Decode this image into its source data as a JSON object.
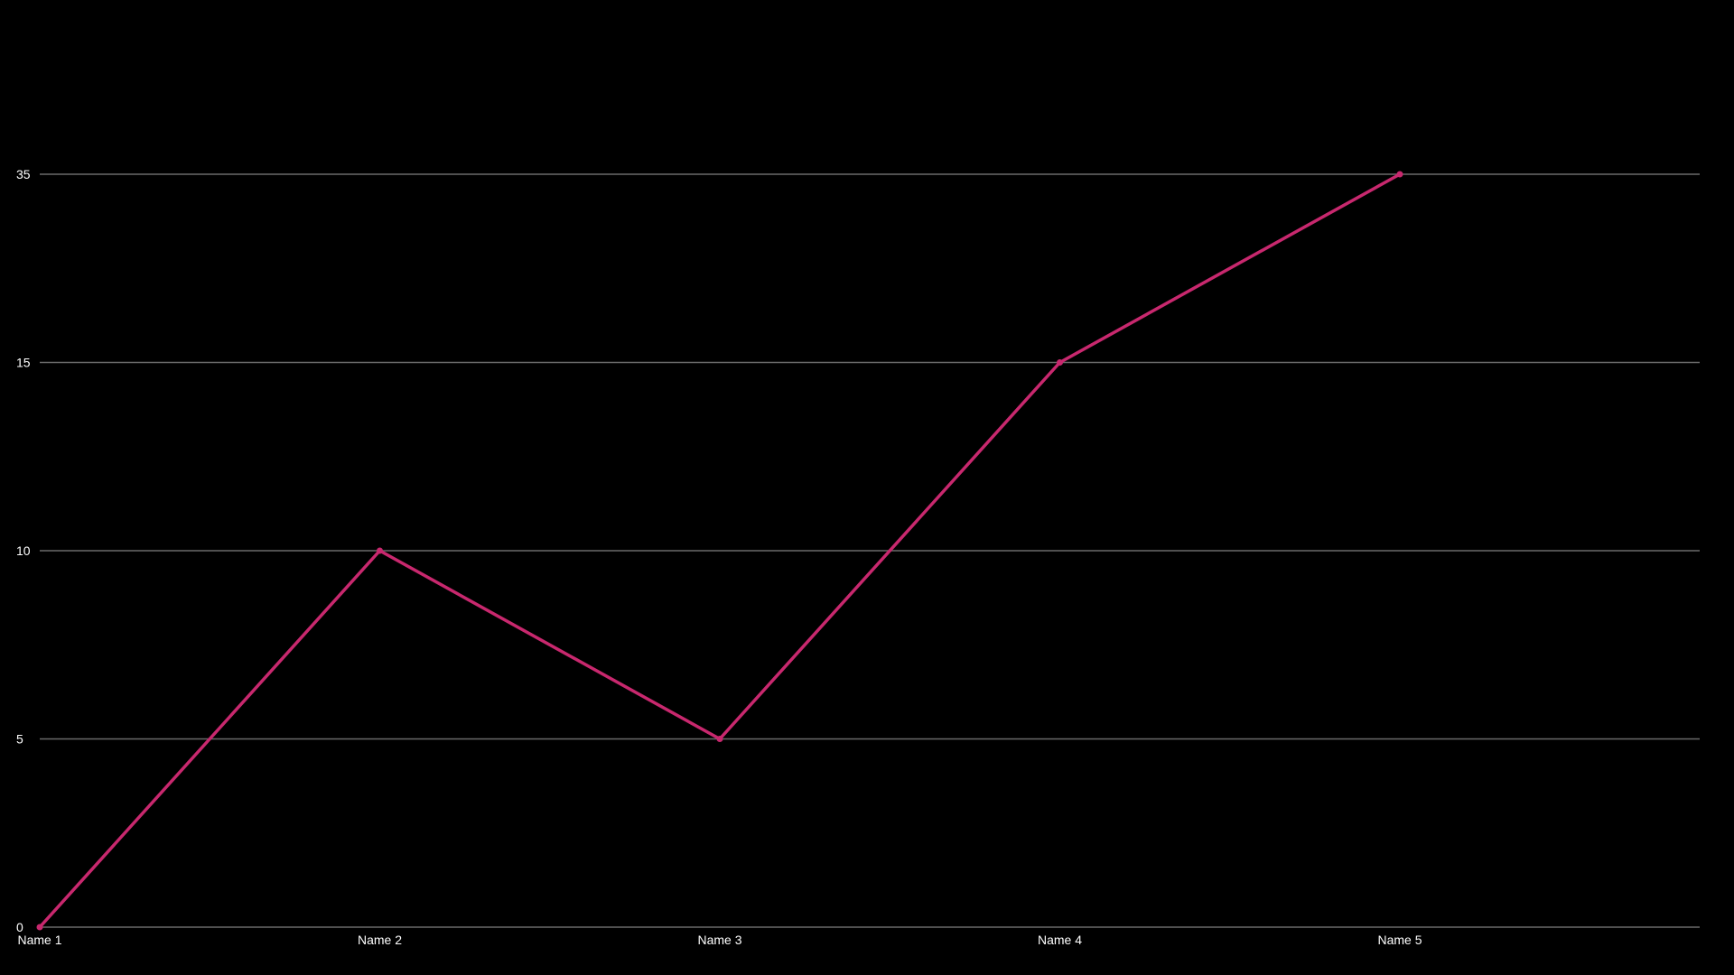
{
  "colors": {
    "background": "#000000",
    "gridline": "#6b6b6b",
    "series_line": "#c8286e",
    "tick_text": "#ffffff"
  },
  "chart_data": {
    "type": "line",
    "categories": [
      "Name 1",
      "Name 2",
      "Name 3",
      "Name 4",
      "Name 5"
    ],
    "series": [
      {
        "values": [
          0,
          10,
          5,
          15,
          35
        ]
      }
    ],
    "y_ticks": [
      "0",
      "5",
      "10",
      "15",
      "35"
    ],
    "grid": true,
    "legend": "none",
    "markers": true
  }
}
